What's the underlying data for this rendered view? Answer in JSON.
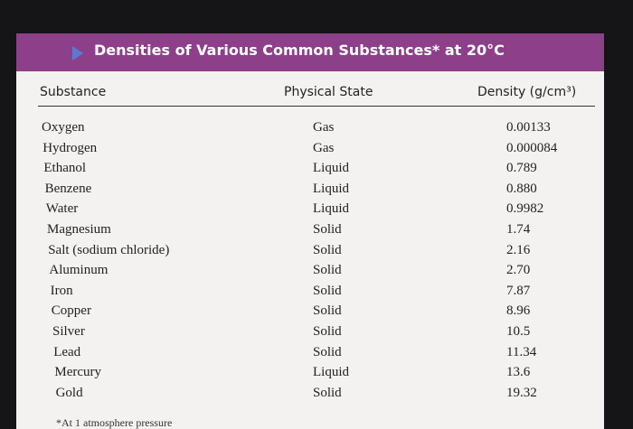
{
  "header": {
    "title": "Densities of Various Common Substances* at 20°C"
  },
  "table": {
    "columns": [
      "Substance",
      "Physical State",
      "Density (g/cm³)"
    ],
    "rows": [
      [
        "Oxygen",
        "Gas",
        "0.00133"
      ],
      [
        "Hydrogen",
        "Gas",
        "0.000084"
      ],
      [
        "Ethanol",
        "Liquid",
        "0.789"
      ],
      [
        "Benzene",
        "Liquid",
        "0.880"
      ],
      [
        "Water",
        "Liquid",
        "0.9982"
      ],
      [
        "Magnesium",
        "Solid",
        "1.74"
      ],
      [
        "Salt (sodium chloride)",
        "Solid",
        "2.16"
      ],
      [
        "Aluminum",
        "Solid",
        "2.70"
      ],
      [
        "Iron",
        "Solid",
        "7.87"
      ],
      [
        "Copper",
        "Solid",
        "8.96"
      ],
      [
        "Silver",
        "Solid",
        "10.5"
      ],
      [
        "Lead",
        "Solid",
        "11.34"
      ],
      [
        "Mercury",
        "Liquid",
        "13.6"
      ],
      [
        "Gold",
        "Solid",
        "19.32"
      ]
    ]
  },
  "footnote": "*At 1 atmosphere pressure"
}
